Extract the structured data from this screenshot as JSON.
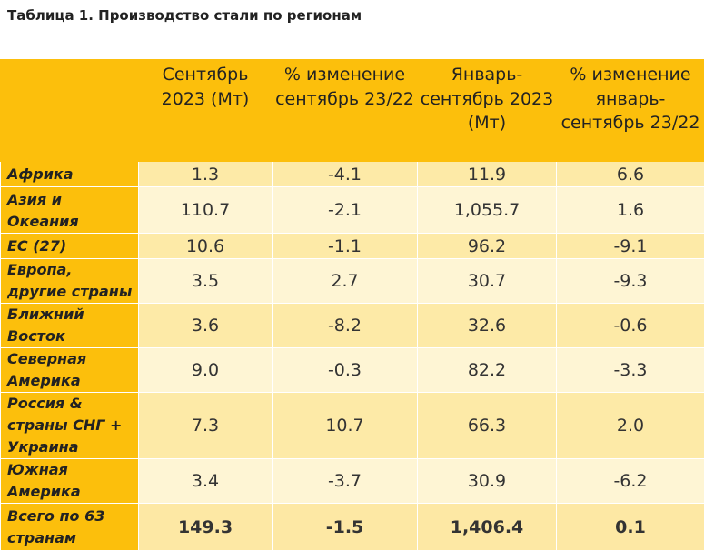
{
  "title": "Таблица 1. Производство стали по регионам",
  "headers": [
    "",
    "Сентябрь 2023 (Мт)",
    "% изменение сентябрь 23/22",
    "Январь-сентябрь 2023 (Мт)",
    "% изменение январь-сентябрь 23/22"
  ],
  "rows": [
    {
      "region": "Африка",
      "sep": "1.3",
      "sep_change": "-4.1",
      "ytd": "11.9",
      "ytd_change": "6.6"
    },
    {
      "region": "Азия и Океания",
      "sep": "110.7",
      "sep_change": "-2.1",
      "ytd": "1,055.7",
      "ytd_change": "1.6"
    },
    {
      "region": "ЕС (27)",
      "sep": "10.6",
      "sep_change": "-1.1",
      "ytd": "96.2",
      "ytd_change": "-9.1"
    },
    {
      "region": "Европа, другие страны",
      "sep": "3.5",
      "sep_change": "2.7",
      "ytd": "30.7",
      "ytd_change": "-9.3"
    },
    {
      "region": "Ближний Восток",
      "sep": "3.6",
      "sep_change": "-8.2",
      "ytd": "32.6",
      "ytd_change": "-0.6"
    },
    {
      "region": "Северная Америка",
      "sep": "9.0",
      "sep_change": "-0.3",
      "ytd": "82.2",
      "ytd_change": "-3.3"
    },
    {
      "region": "Россия & страны СНГ + Украина",
      "sep": "7.3",
      "sep_change": "10.7",
      "ytd": "66.3",
      "ytd_change": "2.0"
    },
    {
      "region": "Южная Америка",
      "sep": "3.4",
      "sep_change": "-3.7",
      "ytd": "30.9",
      "ytd_change": "-6.2"
    },
    {
      "region": "Всего по 63 странам",
      "sep": "149.3",
      "sep_change": "-1.5",
      "ytd": "1,406.4",
      "ytd_change": "0.1"
    }
  ],
  "colors": {
    "header_bg": "#fcbf0c",
    "row_light": "#fef5d4",
    "row_mid": "#fdeaa7"
  }
}
